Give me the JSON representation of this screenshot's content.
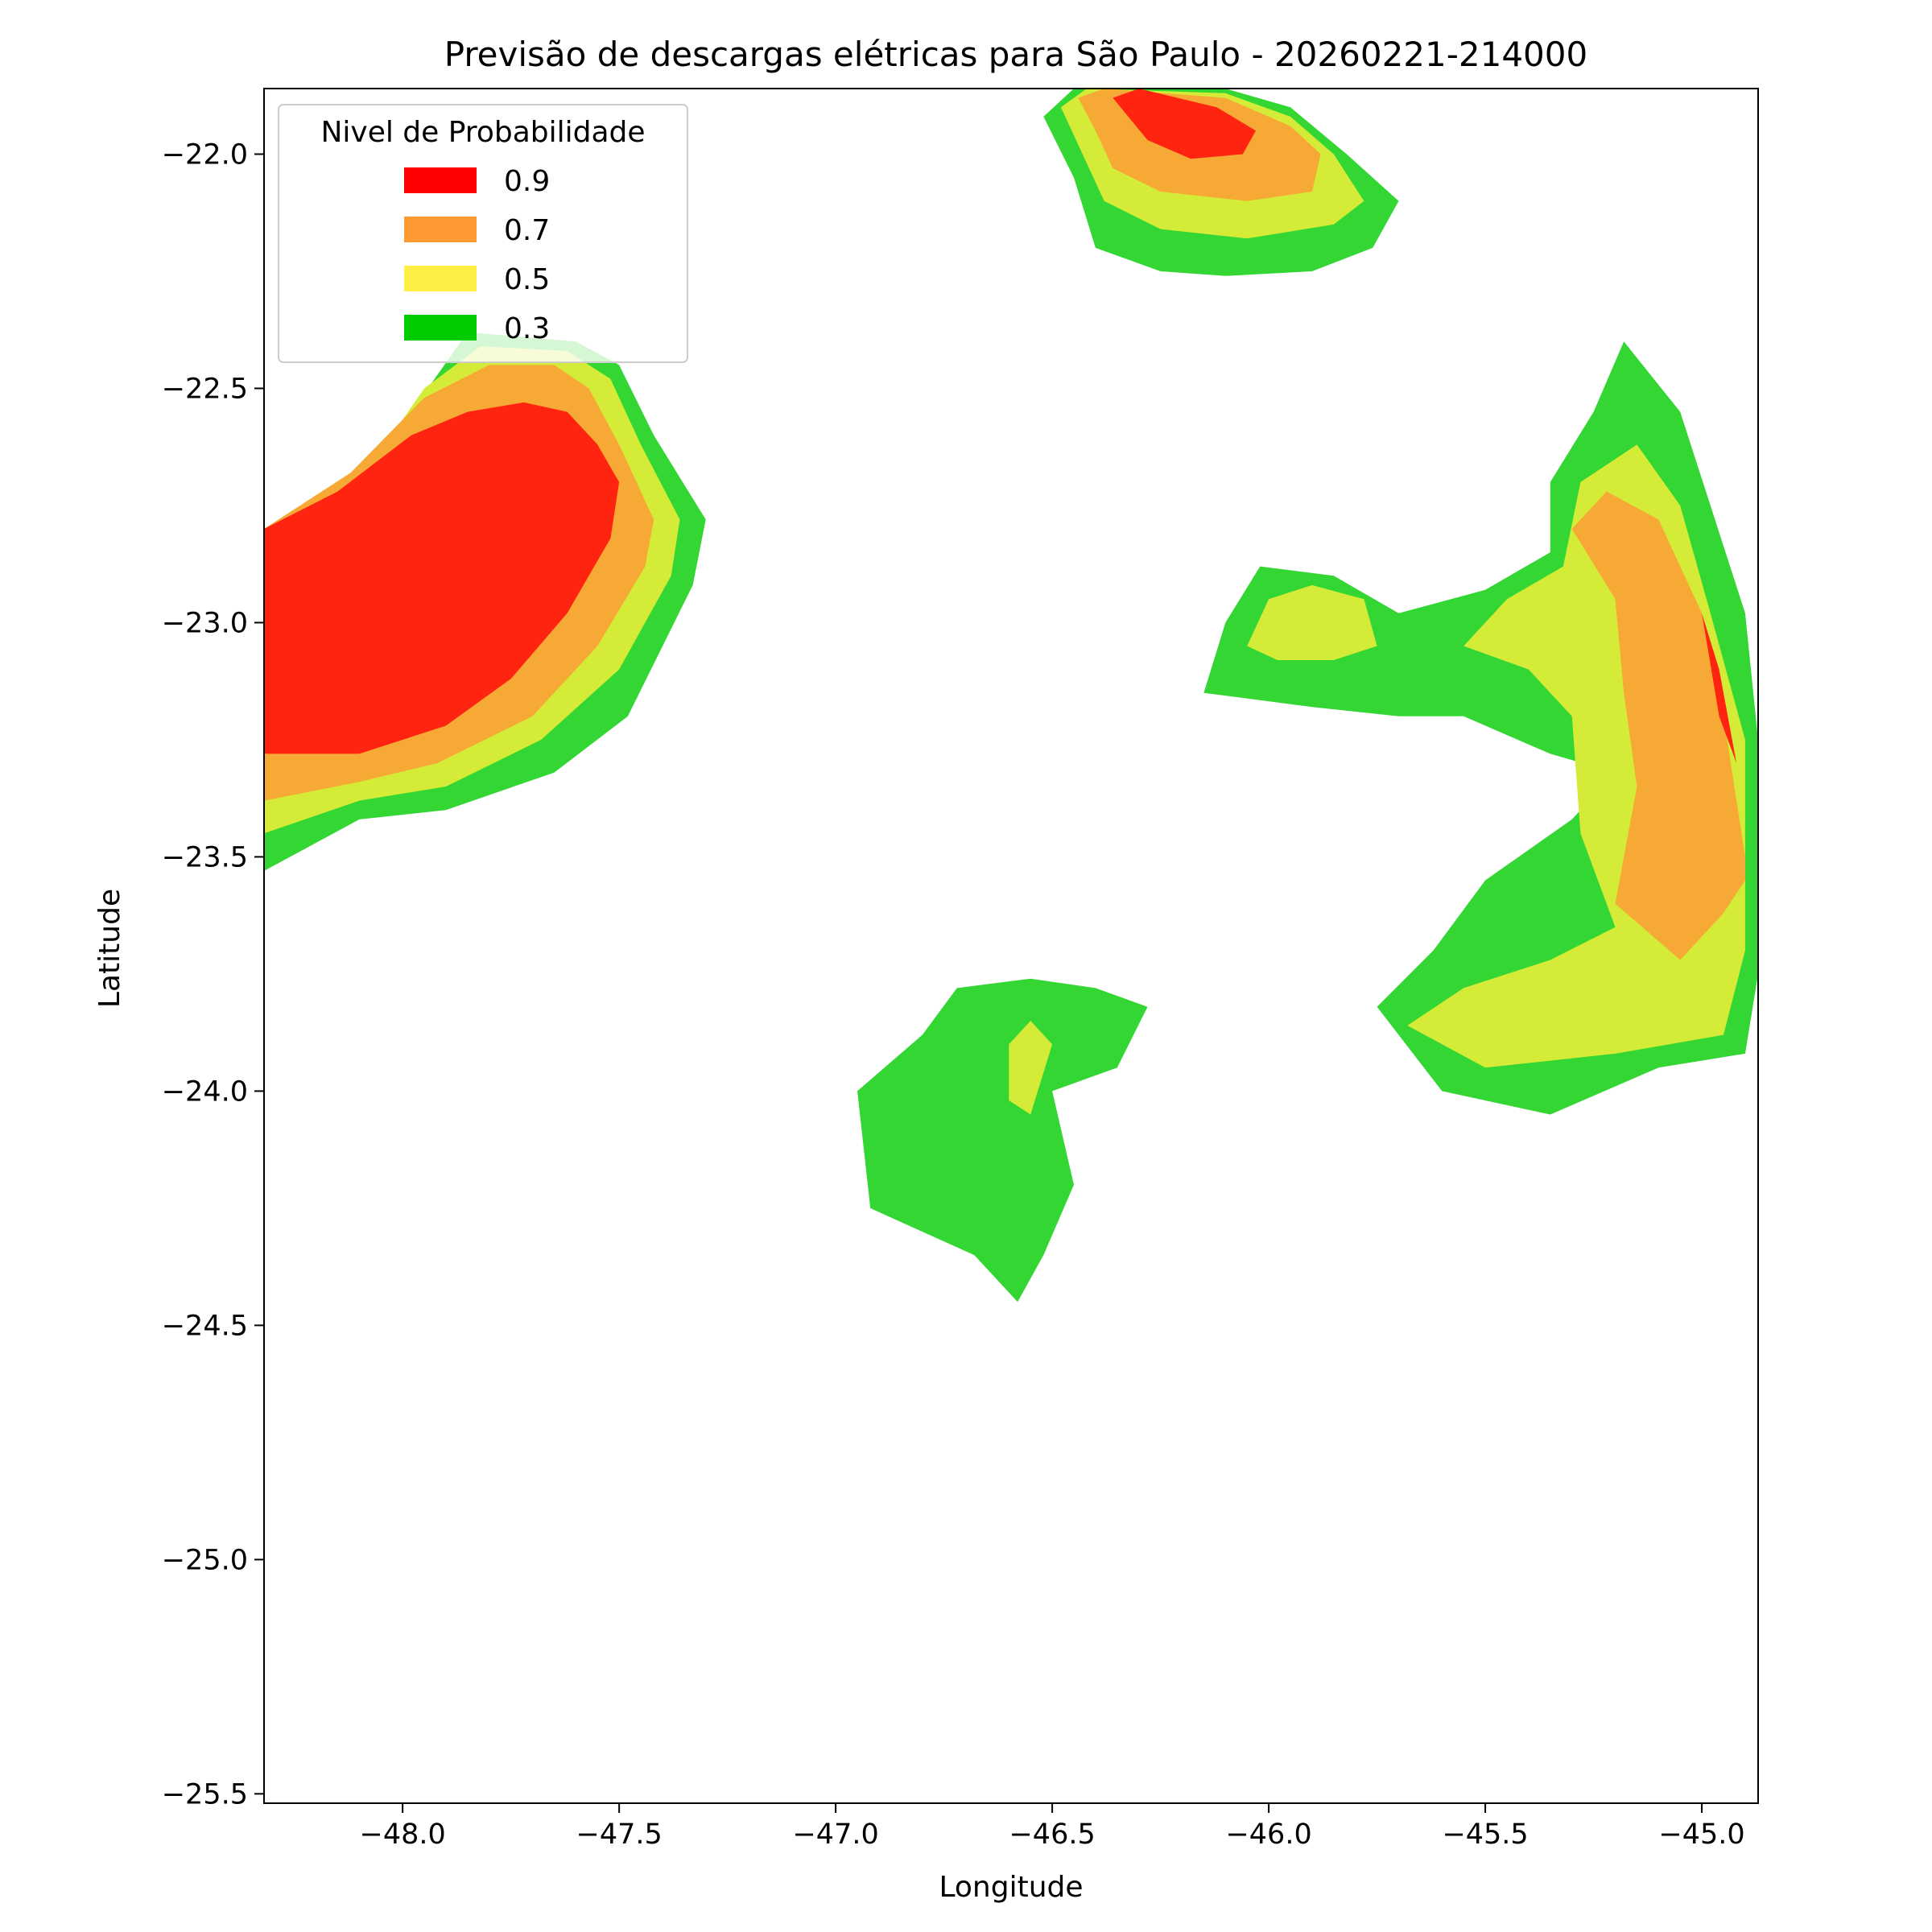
{
  "chart_data": {
    "type": "contour-map",
    "title": "Previsão de descargas elétricas para São Paulo - 20260221-214000",
    "xlabel": "Longitude",
    "ylabel": "Latitude",
    "xlim": [
      -48.32,
      -44.87
    ],
    "ylim": [
      -25.52,
      -21.86
    ],
    "x_ticks": [
      -48.0,
      -47.5,
      -47.0,
      -46.5,
      -46.0,
      -45.5,
      -45.0
    ],
    "x_tick_labels": [
      "−48.0",
      "−47.5",
      "−47.0",
      "−46.5",
      "−46.0",
      "−45.5",
      "−45.0"
    ],
    "y_ticks": [
      -22.0,
      -22.5,
      -23.0,
      -23.5,
      -24.0,
      -24.5,
      -25.0,
      -25.5
    ],
    "y_tick_labels": [
      "−22.0",
      "−22.5",
      "−23.0",
      "−23.5",
      "−24.0",
      "−24.5",
      "−25.0",
      "−25.5"
    ],
    "legend": {
      "title": "Nivel de Probabilidade",
      "placement": "upper-left",
      "entries": [
        {
          "label": "0.9",
          "color": "#ff0000"
        },
        {
          "label": "0.7",
          "color": "#ff9a33"
        },
        {
          "label": "0.5",
          "color": "#ffee44"
        },
        {
          "label": "0.3",
          "color": "#00cc00"
        }
      ]
    },
    "fill_colors": {
      "0.3": "#33d633",
      "0.5": "#d4ec38",
      "0.7": "#f7a935",
      "0.9": "#fe2410"
    },
    "regions": [
      {
        "level": "0.3",
        "lonlat": [
          [
            -48.32,
            -23.53
          ],
          [
            -48.1,
            -23.42
          ],
          [
            -47.9,
            -23.4
          ],
          [
            -47.65,
            -23.32
          ],
          [
            -47.48,
            -23.2
          ],
          [
            -47.33,
            -22.92
          ],
          [
            -47.3,
            -22.78
          ],
          [
            -47.42,
            -22.6
          ],
          [
            -47.5,
            -22.45
          ],
          [
            -47.6,
            -22.4
          ],
          [
            -47.85,
            -22.38
          ],
          [
            -47.98,
            -22.55
          ],
          [
            -48.1,
            -22.75
          ],
          [
            -48.32,
            -22.9
          ]
        ]
      },
      {
        "level": "0.5",
        "lonlat": [
          [
            -48.32,
            -23.45
          ],
          [
            -48.1,
            -23.38
          ],
          [
            -47.9,
            -23.35
          ],
          [
            -47.68,
            -23.25
          ],
          [
            -47.5,
            -23.1
          ],
          [
            -47.38,
            -22.9
          ],
          [
            -47.36,
            -22.78
          ],
          [
            -47.45,
            -22.62
          ],
          [
            -47.52,
            -22.48
          ],
          [
            -47.62,
            -22.42
          ],
          [
            -47.82,
            -22.41
          ],
          [
            -47.95,
            -22.5
          ],
          [
            -48.1,
            -22.7
          ],
          [
            -48.32,
            -22.85
          ]
        ]
      },
      {
        "level": "0.7",
        "lonlat": [
          [
            -48.32,
            -23.38
          ],
          [
            -48.1,
            -23.34
          ],
          [
            -47.92,
            -23.3
          ],
          [
            -47.7,
            -23.2
          ],
          [
            -47.55,
            -23.05
          ],
          [
            -47.44,
            -22.88
          ],
          [
            -47.42,
            -22.78
          ],
          [
            -47.5,
            -22.62
          ],
          [
            -47.57,
            -22.5
          ],
          [
            -47.65,
            -22.45
          ],
          [
            -47.8,
            -22.45
          ],
          [
            -47.95,
            -22.52
          ],
          [
            -48.12,
            -22.68
          ],
          [
            -48.32,
            -22.8
          ]
        ]
      },
      {
        "level": "0.9",
        "lonlat": [
          [
            -48.32,
            -23.28
          ],
          [
            -48.1,
            -23.28
          ],
          [
            -47.9,
            -23.22
          ],
          [
            -47.75,
            -23.12
          ],
          [
            -47.62,
            -22.98
          ],
          [
            -47.52,
            -22.82
          ],
          [
            -47.5,
            -22.7
          ],
          [
            -47.55,
            -22.62
          ],
          [
            -47.62,
            -22.55
          ],
          [
            -47.72,
            -22.53
          ],
          [
            -47.85,
            -22.55
          ],
          [
            -47.98,
            -22.6
          ],
          [
            -48.15,
            -22.72
          ],
          [
            -48.32,
            -22.8
          ]
        ]
      },
      {
        "level": "0.3",
        "lonlat": [
          [
            -46.52,
            -21.92
          ],
          [
            -46.45,
            -21.86
          ],
          [
            -46.1,
            -21.86
          ],
          [
            -45.95,
            -21.9
          ],
          [
            -45.82,
            -22.0
          ],
          [
            -45.7,
            -22.1
          ],
          [
            -45.76,
            -22.2
          ],
          [
            -45.9,
            -22.25
          ],
          [
            -46.1,
            -22.26
          ],
          [
            -46.25,
            -22.25
          ],
          [
            -46.4,
            -22.2
          ],
          [
            -46.45,
            -22.05
          ]
        ]
      },
      {
        "level": "0.5",
        "lonlat": [
          [
            -46.48,
            -21.9
          ],
          [
            -46.42,
            -21.86
          ],
          [
            -46.1,
            -21.87
          ],
          [
            -45.95,
            -21.92
          ],
          [
            -45.85,
            -22.0
          ],
          [
            -45.78,
            -22.1
          ],
          [
            -45.85,
            -22.15
          ],
          [
            -46.05,
            -22.18
          ],
          [
            -46.25,
            -22.16
          ],
          [
            -46.38,
            -22.1
          ],
          [
            -46.43,
            -22.0
          ]
        ]
      },
      {
        "level": "0.7",
        "lonlat": [
          [
            -46.44,
            -21.88
          ],
          [
            -46.38,
            -21.86
          ],
          [
            -46.1,
            -21.88
          ],
          [
            -45.95,
            -21.94
          ],
          [
            -45.88,
            -22.0
          ],
          [
            -45.9,
            -22.08
          ],
          [
            -46.05,
            -22.1
          ],
          [
            -46.25,
            -22.08
          ],
          [
            -46.36,
            -22.03
          ],
          [
            -46.4,
            -21.95
          ]
        ]
      },
      {
        "level": "0.9",
        "lonlat": [
          [
            -46.36,
            -21.88
          ],
          [
            -46.3,
            -21.86
          ],
          [
            -46.12,
            -21.9
          ],
          [
            -46.03,
            -21.95
          ],
          [
            -46.06,
            -22.0
          ],
          [
            -46.18,
            -22.01
          ],
          [
            -46.28,
            -21.97
          ]
        ]
      },
      {
        "level": "0.3",
        "lonlat": [
          [
            -46.15,
            -23.15
          ],
          [
            -46.1,
            -23.0
          ],
          [
            -46.02,
            -22.88
          ],
          [
            -45.85,
            -22.9
          ],
          [
            -45.7,
            -22.98
          ],
          [
            -45.5,
            -22.93
          ],
          [
            -45.35,
            -22.85
          ],
          [
            -45.35,
            -22.7
          ],
          [
            -45.25,
            -22.55
          ],
          [
            -45.18,
            -22.4
          ],
          [
            -45.05,
            -22.55
          ],
          [
            -44.98,
            -22.75
          ],
          [
            -44.9,
            -22.98
          ],
          [
            -44.87,
            -23.25
          ],
          [
            -44.87,
            -23.75
          ],
          [
            -44.9,
            -23.92
          ],
          [
            -45.1,
            -23.95
          ],
          [
            -45.35,
            -24.05
          ],
          [
            -45.6,
            -24.0
          ],
          [
            -45.75,
            -23.82
          ],
          [
            -45.62,
            -23.7
          ],
          [
            -45.5,
            -23.55
          ],
          [
            -45.3,
            -23.42
          ],
          [
            -45.2,
            -23.32
          ],
          [
            -45.35,
            -23.28
          ],
          [
            -45.55,
            -23.2
          ],
          [
            -45.7,
            -23.2
          ],
          [
            -45.9,
            -23.18
          ]
        ]
      },
      {
        "level": "0.5",
        "lonlat": [
          [
            -45.55,
            -23.05
          ],
          [
            -45.45,
            -22.95
          ],
          [
            -45.32,
            -22.88
          ],
          [
            -45.28,
            -22.7
          ],
          [
            -45.15,
            -22.62
          ],
          [
            -45.05,
            -22.75
          ],
          [
            -44.98,
            -22.98
          ],
          [
            -44.9,
            -23.25
          ],
          [
            -44.9,
            -23.7
          ],
          [
            -44.95,
            -23.88
          ],
          [
            -45.2,
            -23.92
          ],
          [
            -45.5,
            -23.95
          ],
          [
            -45.68,
            -23.86
          ],
          [
            -45.55,
            -23.78
          ],
          [
            -45.35,
            -23.72
          ],
          [
            -45.2,
            -23.65
          ],
          [
            -45.28,
            -23.45
          ],
          [
            -45.3,
            -23.2
          ],
          [
            -45.4,
            -23.1
          ]
        ]
      },
      {
        "level": "0.5",
        "lonlat": [
          [
            -46.05,
            -23.05
          ],
          [
            -46.0,
            -22.95
          ],
          [
            -45.9,
            -22.92
          ],
          [
            -45.78,
            -22.95
          ],
          [
            -45.75,
            -23.05
          ],
          [
            -45.85,
            -23.08
          ],
          [
            -45.98,
            -23.08
          ]
        ]
      },
      {
        "level": "0.7",
        "lonlat": [
          [
            -45.18,
            -23.15
          ],
          [
            -45.2,
            -22.95
          ],
          [
            -45.3,
            -22.8
          ],
          [
            -45.22,
            -22.72
          ],
          [
            -45.1,
            -22.78
          ],
          [
            -45.0,
            -22.98
          ],
          [
            -44.95,
            -23.2
          ],
          [
            -44.9,
            -23.5
          ],
          [
            -44.9,
            -23.55
          ],
          [
            -44.95,
            -23.62
          ],
          [
            -45.05,
            -23.72
          ],
          [
            -45.2,
            -23.6
          ],
          [
            -45.15,
            -23.35
          ]
        ]
      },
      {
        "level": "0.9",
        "lonlat": [
          [
            -45.0,
            -22.98
          ],
          [
            -44.96,
            -23.1
          ],
          [
            -44.92,
            -23.3
          ],
          [
            -44.96,
            -23.2
          ]
        ]
      },
      {
        "level": "0.3",
        "lonlat": [
          [
            -46.92,
            -24.25
          ],
          [
            -46.95,
            -24.0
          ],
          [
            -46.8,
            -23.88
          ],
          [
            -46.72,
            -23.78
          ],
          [
            -46.55,
            -23.76
          ],
          [
            -46.4,
            -23.78
          ],
          [
            -46.28,
            -23.82
          ],
          [
            -46.35,
            -23.95
          ],
          [
            -46.5,
            -24.0
          ],
          [
            -46.45,
            -24.2
          ],
          [
            -46.52,
            -24.35
          ],
          [
            -46.58,
            -24.45
          ],
          [
            -46.68,
            -24.35
          ],
          [
            -46.8,
            -24.3
          ]
        ]
      },
      {
        "level": "0.5",
        "lonlat": [
          [
            -46.6,
            -23.9
          ],
          [
            -46.55,
            -23.85
          ],
          [
            -46.5,
            -23.9
          ],
          [
            -46.55,
            -24.05
          ],
          [
            -46.6,
            -24.02
          ]
        ]
      }
    ]
  }
}
